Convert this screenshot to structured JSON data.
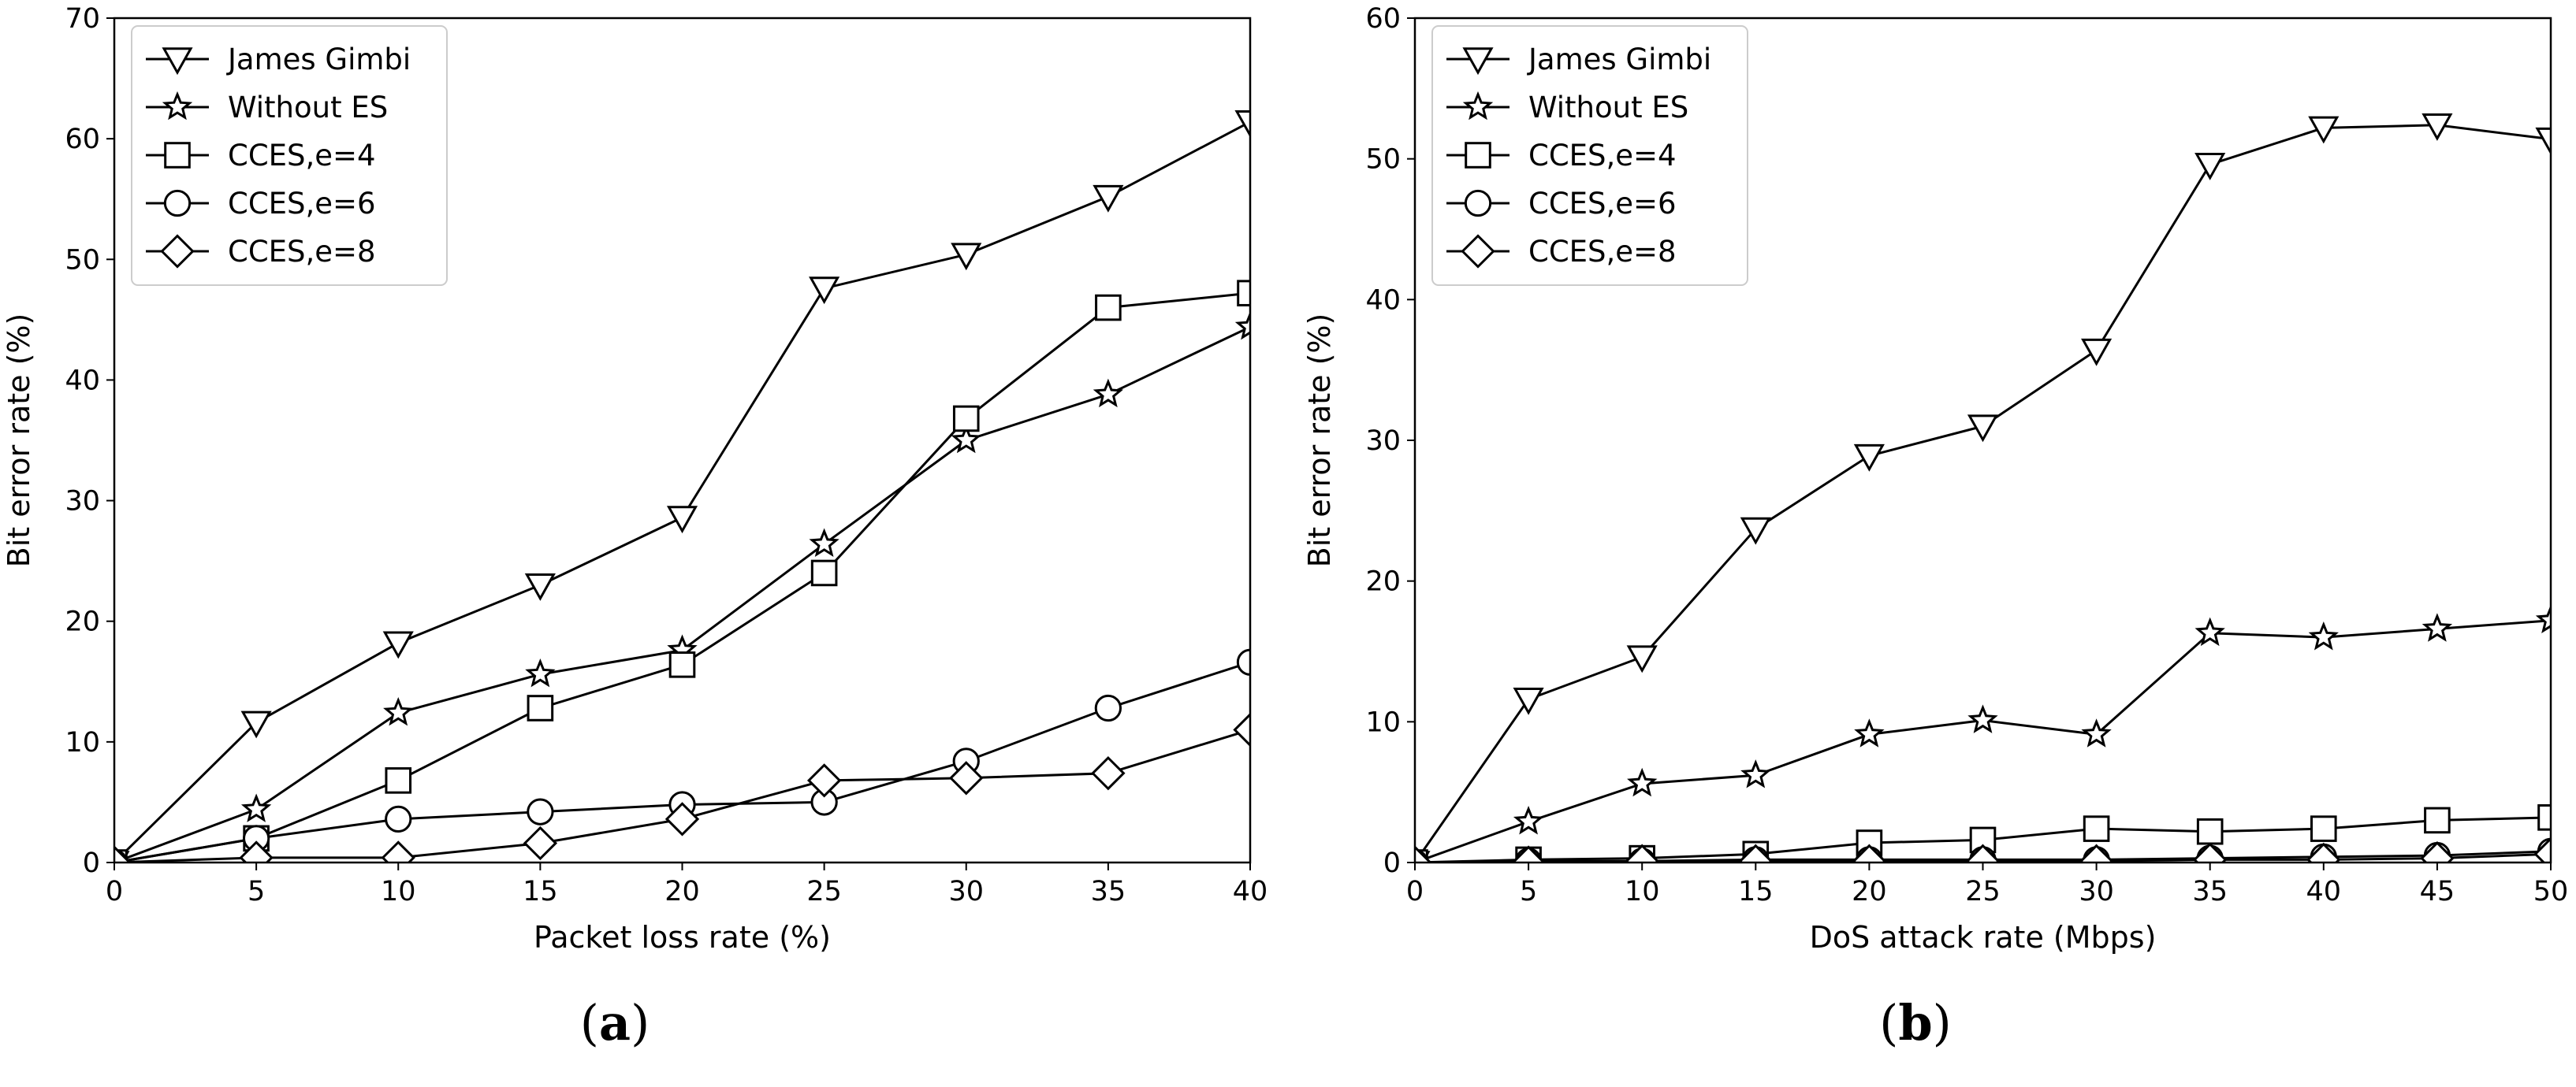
{
  "chart_data": [
    {
      "type": "line",
      "caption_letter": "a",
      "xlabel": "Packet loss rate (%)",
      "ylabel": "Bit error rate (%)",
      "xlim": [
        0,
        40
      ],
      "ylim": [
        0,
        70
      ],
      "xticks": [
        0,
        5,
        10,
        15,
        20,
        25,
        30,
        35,
        40
      ],
      "yticks": [
        0,
        10,
        20,
        30,
        40,
        50,
        60,
        70
      ],
      "grid": false,
      "legend_position": "top-left",
      "x": [
        0,
        5,
        10,
        15,
        20,
        25,
        30,
        35,
        40
      ],
      "series": [
        {
          "name": "James Gimbi",
          "marker": "triangle-down",
          "values": [
            0,
            11.6,
            18.2,
            23.0,
            28.6,
            47.6,
            50.4,
            55.2,
            61.4
          ]
        },
        {
          "name": "Without ES",
          "marker": "star",
          "values": [
            0,
            4.4,
            12.4,
            15.6,
            17.6,
            26.4,
            35.0,
            38.8,
            44.4
          ]
        },
        {
          "name": "CCES,e=4",
          "marker": "square",
          "values": [
            0,
            2.0,
            6.8,
            12.8,
            16.4,
            24.0,
            36.8,
            46.0,
            47.2
          ]
        },
        {
          "name": "CCES,e=6",
          "marker": "circle",
          "values": [
            0,
            2.0,
            3.6,
            4.2,
            4.8,
            5.0,
            8.4,
            12.8,
            16.6
          ]
        },
        {
          "name": "CCES,e=8",
          "marker": "diamond",
          "values": [
            0,
            0.4,
            0.4,
            1.6,
            3.6,
            6.8,
            7.0,
            7.4,
            11.0
          ]
        }
      ]
    },
    {
      "type": "line",
      "caption_letter": "b",
      "xlabel": "DoS attack rate (Mbps)",
      "ylabel": "Bit error rate (%)",
      "xlim": [
        0,
        50
      ],
      "ylim": [
        0,
        60
      ],
      "xticks": [
        0,
        5,
        10,
        15,
        20,
        25,
        30,
        35,
        40,
        45,
        50
      ],
      "yticks": [
        0,
        10,
        20,
        30,
        40,
        50,
        60
      ],
      "grid": false,
      "legend_position": "top-left",
      "x": [
        0,
        5,
        10,
        15,
        20,
        25,
        30,
        35,
        40,
        45,
        50
      ],
      "series": [
        {
          "name": "James Gimbi",
          "marker": "triangle-down",
          "values": [
            0,
            11.6,
            14.6,
            23.7,
            28.9,
            31.0,
            36.4,
            49.6,
            52.2,
            52.4,
            51.4
          ]
        },
        {
          "name": "Without ES",
          "marker": "star",
          "values": [
            0,
            2.9,
            5.6,
            6.2,
            9.1,
            10.1,
            9.1,
            16.3,
            16.0,
            16.6,
            17.2
          ]
        },
        {
          "name": "CCES,e=4",
          "marker": "square",
          "values": [
            0,
            0.2,
            0.3,
            0.6,
            1.4,
            1.6,
            2.4,
            2.2,
            2.4,
            3.0,
            3.2
          ]
        },
        {
          "name": "CCES,e=6",
          "marker": "circle",
          "values": [
            0,
            0.1,
            0.1,
            0.2,
            0.2,
            0.2,
            0.2,
            0.3,
            0.4,
            0.5,
            0.8
          ]
        },
        {
          "name": "CCES,e=8",
          "marker": "diamond",
          "values": [
            0,
            0.0,
            0.1,
            0.1,
            0.1,
            0.1,
            0.1,
            0.2,
            0.2,
            0.3,
            0.6
          ]
        }
      ]
    }
  ]
}
